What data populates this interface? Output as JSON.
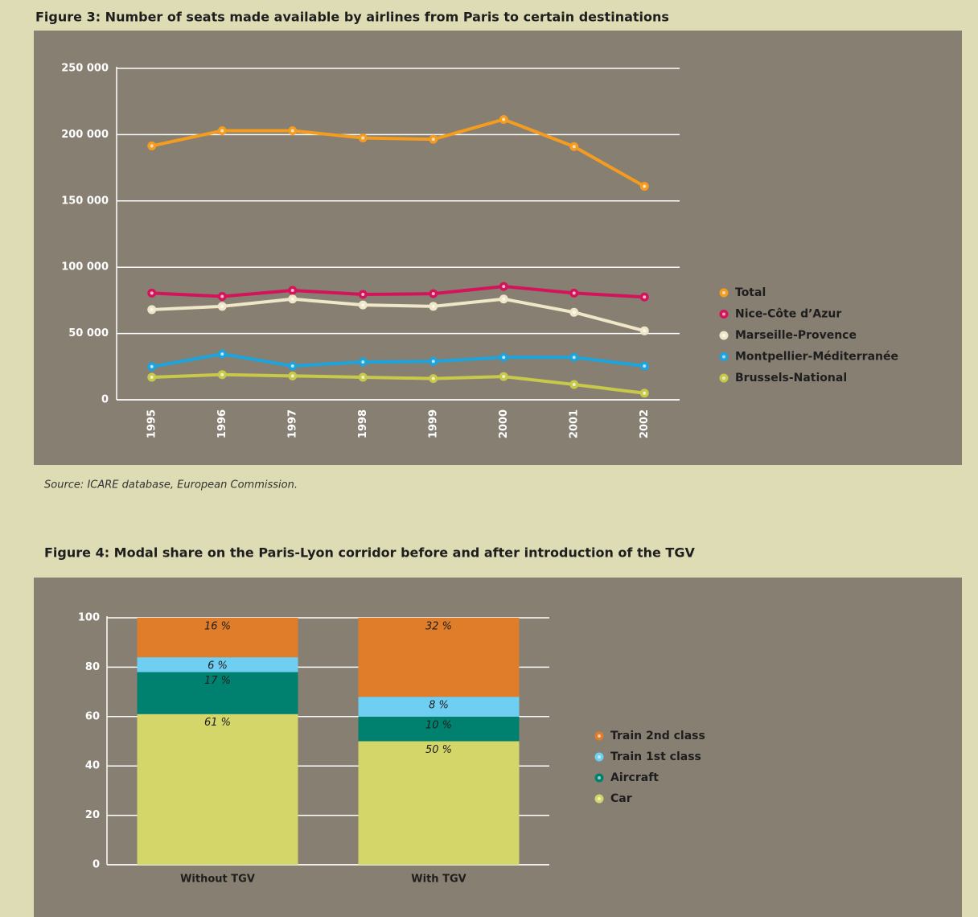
{
  "chart_data": [
    {
      "type": "line",
      "title": "Figure 3: Number of seats made available by airlines from Paris to certain destinations",
      "source": "Source:  ICARE database,  European Commission.",
      "categories": [
        "1995",
        "1996",
        "1997",
        "1998",
        "1999",
        "2000",
        "2001",
        "2002"
      ],
      "series": [
        {
          "name": "Total",
          "color": "#f39c1f",
          "values": [
            191500,
            203000,
            203000,
            197500,
            196500,
            211500,
            191000,
            161000
          ]
        },
        {
          "name": "Nice-Côte d’Azur",
          "color": "#d4145a",
          "values": [
            80500,
            78000,
            82500,
            79500,
            80000,
            85500,
            80500,
            77500
          ]
        },
        {
          "name": "Marseille-Provence",
          "color": "#efe7c8",
          "values": [
            68000,
            70500,
            76000,
            71500,
            70500,
            76000,
            66000,
            52000
          ]
        },
        {
          "name": "Montpellier-Méditerranée",
          "color": "#1ca4dc",
          "values": [
            25000,
            34500,
            25500,
            28500,
            29000,
            32000,
            32000,
            25500
          ]
        },
        {
          "name": "Brussels-National",
          "color": "#c8c84a",
          "values": [
            17000,
            19000,
            18000,
            17000,
            16000,
            17500,
            11500,
            5000
          ]
        }
      ],
      "ylim": [
        0,
        250000
      ],
      "yticks": [
        0,
        {
          "value": 50000,
          "label": "50 000"
        },
        {
          "value": 100000,
          "label": "100 000"
        },
        {
          "value": 150000,
          "label": "150 000"
        },
        {
          "value": 200000,
          "label": "200 000"
        },
        {
          "value": 250000,
          "label": "250 000"
        }
      ],
      "grid": true,
      "legend": "right"
    },
    {
      "type": "stacked_bar",
      "title": "Figure 4: Modal share on the Paris-Lyon corridor before and after introduction of the TGV",
      "categories": [
        "Without TGV",
        "With TGV"
      ],
      "series": [
        {
          "name": "Train 2nd class",
          "color": "#e07d2a",
          "values": [
            16,
            32
          ],
          "value_labels": [
            "16 %",
            "32 %"
          ]
        },
        {
          "name": "Train 1st class",
          "color": "#6fcff3",
          "values": [
            6,
            8
          ],
          "value_labels": [
            "6 %",
            "8 %"
          ]
        },
        {
          "name": "Aircraft",
          "color": "#00806e",
          "values": [
            17,
            10
          ],
          "value_labels": [
            "17 %",
            "10 %"
          ]
        },
        {
          "name": "Car",
          "color": "#d4d66a",
          "values": [
            61,
            50
          ],
          "value_labels": [
            "61 %",
            "50 %"
          ]
        }
      ],
      "ylim": [
        0,
        100
      ],
      "yticks": [
        0,
        20,
        40,
        60,
        80,
        100
      ],
      "grid": true,
      "legend": "right"
    }
  ]
}
